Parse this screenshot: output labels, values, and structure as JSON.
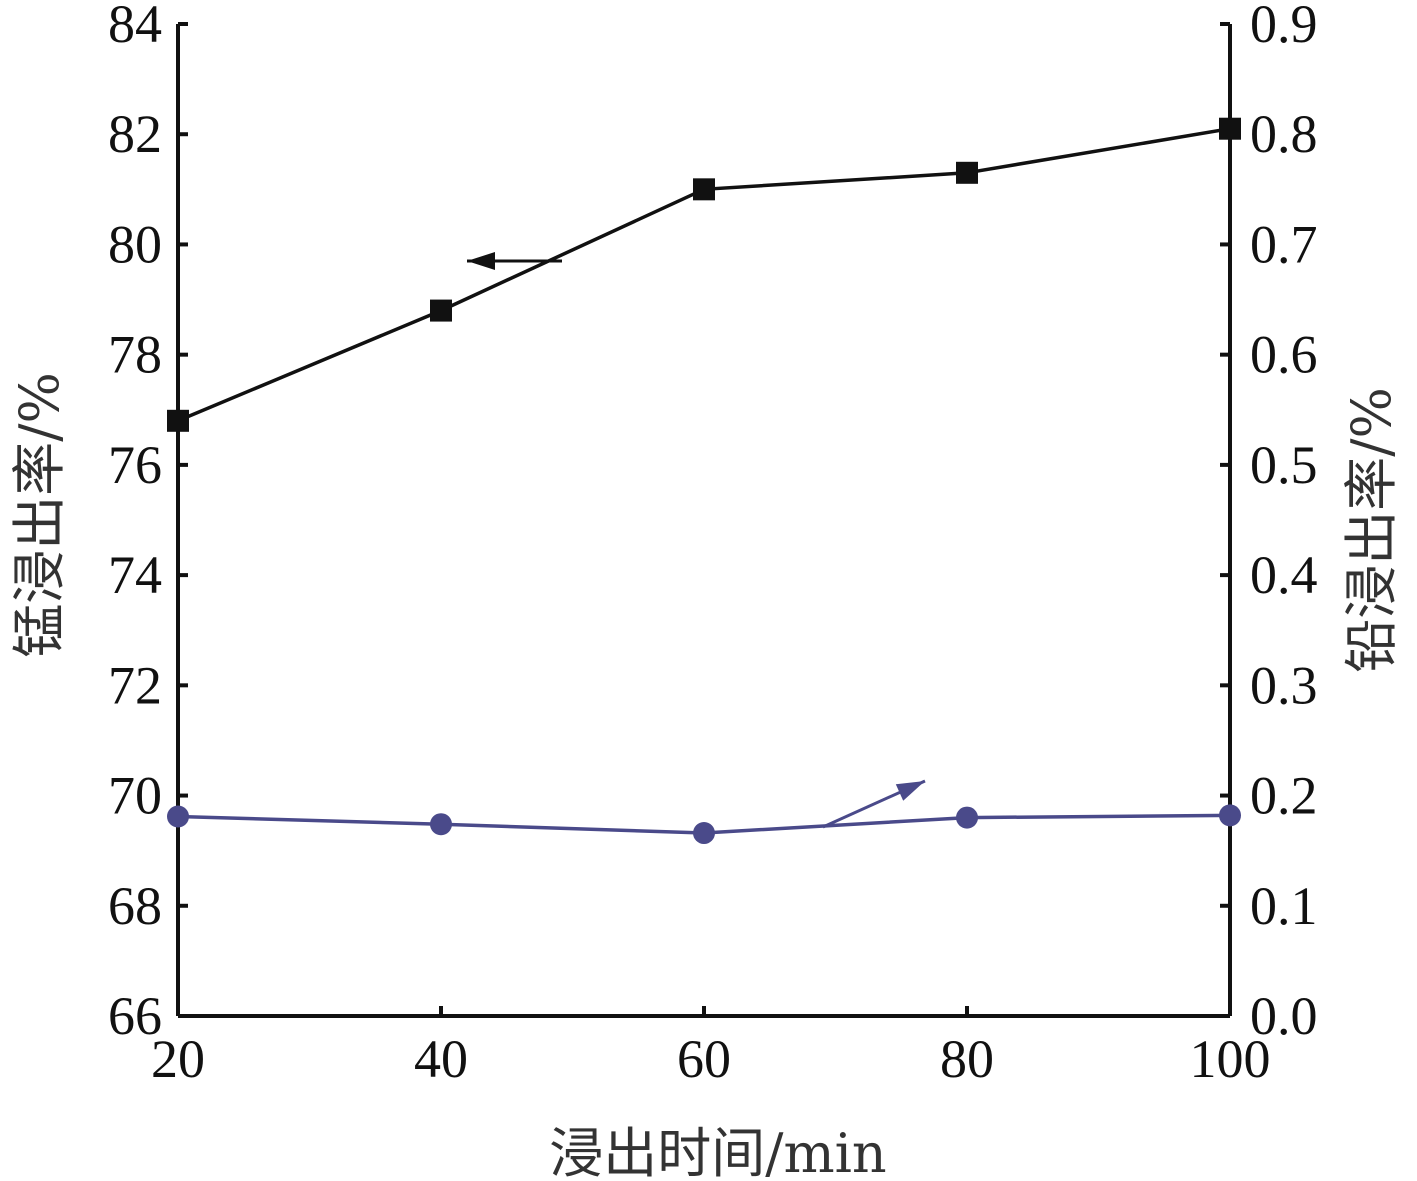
{
  "chart_data": {
    "type": "line",
    "xlabel": "浸出时间/min",
    "ylabel_left": "锰浸出率/%",
    "ylabel_right": "铅浸出率/%",
    "x": [
      20,
      40,
      60,
      80,
      100
    ],
    "xlim": [
      20,
      100
    ],
    "ylim_left": [
      66,
      84
    ],
    "ylim_right": [
      0.0,
      0.9
    ],
    "x_ticks": [
      "20",
      "40",
      "60",
      "80",
      "100"
    ],
    "y_left_ticks": [
      "66",
      "68",
      "70",
      "72",
      "74",
      "76",
      "78",
      "80",
      "82",
      "84"
    ],
    "y_right_ticks": [
      "0.0",
      "0.1",
      "0.2",
      "0.3",
      "0.4",
      "0.5",
      "0.6",
      "0.7",
      "0.8",
      "0.9"
    ],
    "series": [
      {
        "axis": "left",
        "marker": "square",
        "color": "#111111",
        "values": [
          76.8,
          78.8,
          81.0,
          81.3,
          82.1
        ]
      },
      {
        "axis": "right",
        "marker": "circle",
        "color": "#4a4a8a",
        "values": [
          0.181,
          0.174,
          0.166,
          0.18,
          0.182
        ]
      }
    ],
    "annotations": [
      {
        "type": "arrow",
        "direction": "left",
        "points_to": "left-axis",
        "series": 0
      },
      {
        "type": "arrow",
        "direction": "up-right",
        "points_to": "right-axis",
        "series": 1
      }
    ],
    "grid": false,
    "legend": "none"
  }
}
